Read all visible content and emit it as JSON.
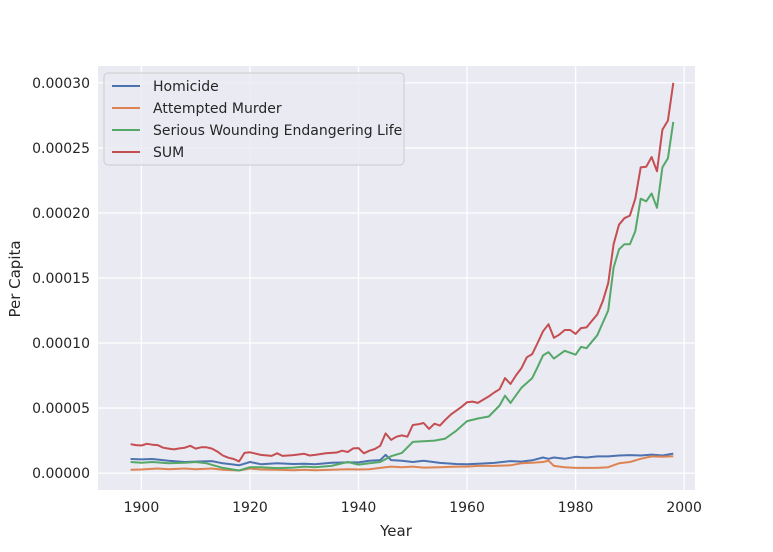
{
  "chart_data": {
    "type": "line",
    "title": "",
    "xlabel": "Year",
    "ylabel": "Per Capita",
    "xlim": [
      1892,
      2002
    ],
    "ylim": [
      -1.3e-05,
      0.000313
    ],
    "xticks": [
      1900,
      1920,
      1940,
      1960,
      1980,
      2000
    ],
    "yticks": [
      0.0,
      5e-05,
      0.0001,
      0.00015,
      0.0002,
      0.00025,
      0.0003
    ],
    "xtick_labels": [
      "1900",
      "1920",
      "1940",
      "1960",
      "1980",
      "2000"
    ],
    "ytick_labels": [
      "0.00000",
      "0.00005",
      "0.00010",
      "0.00015",
      "0.00020",
      "0.00025",
      "0.00030"
    ],
    "grid": true,
    "legend_position": "upper-left",
    "colors": {
      "background": "#eaeaf2",
      "grid": "#ffffff"
    },
    "series": [
      {
        "name": "Homicide",
        "color": "#4c72b0",
        "points": [
          [
            1898,
            1.08e-05
          ],
          [
            1900,
            1.05e-05
          ],
          [
            1902,
            1.08e-05
          ],
          [
            1905,
            9.5e-06
          ],
          [
            1908,
            8.5e-06
          ],
          [
            1910,
            8.8e-06
          ],
          [
            1913,
            9.2e-06
          ],
          [
            1915,
            7.5e-06
          ],
          [
            1918,
            6e-06
          ],
          [
            1920,
            8.5e-06
          ],
          [
            1922,
            6.8e-06
          ],
          [
            1925,
            7.5e-06
          ],
          [
            1928,
            7e-06
          ],
          [
            1930,
            7.2e-06
          ],
          [
            1932,
            6.8e-06
          ],
          [
            1935,
            8e-06
          ],
          [
            1938,
            8.2e-06
          ],
          [
            1940,
            8.2e-06
          ],
          [
            1942,
            9.5e-06
          ],
          [
            1944,
            1e-05
          ],
          [
            1945,
            1.4e-05
          ],
          [
            1946,
            1e-05
          ],
          [
            1948,
            9.5e-06
          ],
          [
            1950,
            8.5e-06
          ],
          [
            1952,
            9.5e-06
          ],
          [
            1955,
            7.8e-06
          ],
          [
            1958,
            7e-06
          ],
          [
            1960,
            6.8e-06
          ],
          [
            1962,
            7.2e-06
          ],
          [
            1965,
            7.8e-06
          ],
          [
            1968,
            9.2e-06
          ],
          [
            1970,
            8.8e-06
          ],
          [
            1972,
            9.8e-06
          ],
          [
            1974,
            1.2e-05
          ],
          [
            1975,
            1.1e-05
          ],
          [
            1976,
            1.2e-05
          ],
          [
            1978,
            1.1e-05
          ],
          [
            1980,
            1.25e-05
          ],
          [
            1982,
            1.2e-05
          ],
          [
            1984,
            1.28e-05
          ],
          [
            1986,
            1.28e-05
          ],
          [
            1988,
            1.35e-05
          ],
          [
            1990,
            1.38e-05
          ],
          [
            1992,
            1.35e-05
          ],
          [
            1994,
            1.42e-05
          ],
          [
            1996,
            1.35e-05
          ],
          [
            1998,
            1.5e-05
          ]
        ]
      },
      {
        "name": "Attempted Murder",
        "color": "#dd8452",
        "points": [
          [
            1898,
            2.5e-06
          ],
          [
            1900,
            2.8e-06
          ],
          [
            1903,
            3.5e-06
          ],
          [
            1905,
            3e-06
          ],
          [
            1908,
            3.5e-06
          ],
          [
            1910,
            3e-06
          ],
          [
            1913,
            3.5e-06
          ],
          [
            1915,
            2.5e-06
          ],
          [
            1918,
            2e-06
          ],
          [
            1920,
            3.5e-06
          ],
          [
            1922,
            2.8e-06
          ],
          [
            1925,
            2.5e-06
          ],
          [
            1928,
            2.2e-06
          ],
          [
            1930,
            2.5e-06
          ],
          [
            1932,
            2.2e-06
          ],
          [
            1935,
            2.5e-06
          ],
          [
            1938,
            3e-06
          ],
          [
            1940,
            2.8e-06
          ],
          [
            1942,
            3e-06
          ],
          [
            1944,
            4e-06
          ],
          [
            1946,
            5e-06
          ],
          [
            1948,
            4.5e-06
          ],
          [
            1950,
            5e-06
          ],
          [
            1952,
            4.2e-06
          ],
          [
            1955,
            4.5e-06
          ],
          [
            1958,
            5e-06
          ],
          [
            1960,
            5e-06
          ],
          [
            1962,
            5.5e-06
          ],
          [
            1965,
            5.5e-06
          ],
          [
            1968,
            6e-06
          ],
          [
            1970,
            7.5e-06
          ],
          [
            1972,
            8e-06
          ],
          [
            1974,
            8.5e-06
          ],
          [
            1975,
            9.5e-06
          ],
          [
            1976,
            5.5e-06
          ],
          [
            1978,
            4.5e-06
          ],
          [
            1980,
            4e-06
          ],
          [
            1982,
            4e-06
          ],
          [
            1984,
            4e-06
          ],
          [
            1986,
            4.5e-06
          ],
          [
            1988,
            7.5e-06
          ],
          [
            1990,
            8.5e-06
          ],
          [
            1992,
            1.1e-05
          ],
          [
            1994,
            1.28e-05
          ],
          [
            1996,
            1.25e-05
          ],
          [
            1998,
            1.3e-05
          ]
        ]
      },
      {
        "name": "Serious Wounding Endangering Life",
        "color": "#55a868",
        "points": [
          [
            1898,
            8.5e-06
          ],
          [
            1900,
            8e-06
          ],
          [
            1902,
            8.5e-06
          ],
          [
            1905,
            7.5e-06
          ],
          [
            1908,
            8e-06
          ],
          [
            1910,
            8.5e-06
          ],
          [
            1912,
            7.5e-06
          ],
          [
            1915,
            4e-06
          ],
          [
            1918,
            2e-06
          ],
          [
            1920,
            4.5e-06
          ],
          [
            1922,
            4.5e-06
          ],
          [
            1925,
            3.8e-06
          ],
          [
            1928,
            4.2e-06
          ],
          [
            1930,
            5e-06
          ],
          [
            1932,
            4.5e-06
          ],
          [
            1935,
            5.5e-06
          ],
          [
            1938,
            8.5e-06
          ],
          [
            1940,
            6.5e-06
          ],
          [
            1942,
            7.5e-06
          ],
          [
            1944,
            8.5e-06
          ],
          [
            1946,
            1.3e-05
          ],
          [
            1948,
            1.55e-05
          ],
          [
            1950,
            2.4e-05
          ],
          [
            1952,
            2.45e-05
          ],
          [
            1954,
            2.5e-05
          ],
          [
            1956,
            2.65e-05
          ],
          [
            1958,
            3.25e-05
          ],
          [
            1960,
            4e-05
          ],
          [
            1962,
            4.2e-05
          ],
          [
            1964,
            4.35e-05
          ],
          [
            1966,
            5.2e-05
          ],
          [
            1967,
            5.95e-05
          ],
          [
            1968,
            5.4e-05
          ],
          [
            1970,
            6.55e-05
          ],
          [
            1972,
            7.3e-05
          ],
          [
            1973,
            8.15e-05
          ],
          [
            1974,
            9.05e-05
          ],
          [
            1975,
            9.3e-05
          ],
          [
            1976,
            8.8e-05
          ],
          [
            1978,
            9.4e-05
          ],
          [
            1980,
            9.1e-05
          ],
          [
            1981,
            9.7e-05
          ],
          [
            1982,
            9.6e-05
          ],
          [
            1984,
            0.000106
          ],
          [
            1986,
            0.000125
          ],
          [
            1987,
            0.000158
          ],
          [
            1988,
            0.000172
          ],
          [
            1989,
            0.000176
          ],
          [
            1990,
            0.000176
          ],
          [
            1991,
            0.000186
          ],
          [
            1992,
            0.000211
          ],
          [
            1993,
            0.000209
          ],
          [
            1994,
            0.000215
          ],
          [
            1995,
            0.000204
          ],
          [
            1996,
            0.000235
          ],
          [
            1997,
            0.000242
          ],
          [
            1998,
            0.00027
          ]
        ]
      },
      {
        "name": "SUM",
        "color": "#c44e52",
        "points": [
          [
            1898,
            2.22e-05
          ],
          [
            1899,
            2.15e-05
          ],
          [
            1900,
            2.12e-05
          ],
          [
            1901,
            2.25e-05
          ],
          [
            1902,
            2.18e-05
          ],
          [
            1903,
            2.15e-05
          ],
          [
            1904,
            1.95e-05
          ],
          [
            1905,
            1.88e-05
          ],
          [
            1906,
            1.82e-05
          ],
          [
            1907,
            1.9e-05
          ],
          [
            1908,
            1.95e-05
          ],
          [
            1909,
            2.1e-05
          ],
          [
            1910,
            1.88e-05
          ],
          [
            1911,
            1.98e-05
          ],
          [
            1912,
            1.98e-05
          ],
          [
            1913,
            1.88e-05
          ],
          [
            1914,
            1.65e-05
          ],
          [
            1915,
            1.35e-05
          ],
          [
            1916,
            1.18e-05
          ],
          [
            1917,
            1.08e-05
          ],
          [
            1918,
            9e-06
          ],
          [
            1919,
            1.55e-05
          ],
          [
            1920,
            1.6e-05
          ],
          [
            1922,
            1.4e-05
          ],
          [
            1924,
            1.32e-05
          ],
          [
            1925,
            1.52e-05
          ],
          [
            1926,
            1.32e-05
          ],
          [
            1928,
            1.38e-05
          ],
          [
            1930,
            1.48e-05
          ],
          [
            1931,
            1.35e-05
          ],
          [
            1932,
            1.4e-05
          ],
          [
            1934,
            1.52e-05
          ],
          [
            1936,
            1.58e-05
          ],
          [
            1937,
            1.72e-05
          ],
          [
            1938,
            1.62e-05
          ],
          [
            1939,
            1.9e-05
          ],
          [
            1940,
            1.92e-05
          ],
          [
            1941,
            1.52e-05
          ],
          [
            1942,
            1.72e-05
          ],
          [
            1943,
            1.85e-05
          ],
          [
            1944,
            2.1e-05
          ],
          [
            1945,
            3.05e-05
          ],
          [
            1946,
            2.55e-05
          ],
          [
            1947,
            2.8e-05
          ],
          [
            1948,
            2.9e-05
          ],
          [
            1949,
            2.8e-05
          ],
          [
            1950,
            3.7e-05
          ],
          [
            1951,
            3.75e-05
          ],
          [
            1952,
            3.85e-05
          ],
          [
            1953,
            3.4e-05
          ],
          [
            1954,
            3.8e-05
          ],
          [
            1955,
            3.65e-05
          ],
          [
            1956,
            4.1e-05
          ],
          [
            1957,
            4.5e-05
          ],
          [
            1958,
            4.8e-05
          ],
          [
            1959,
            5.1e-05
          ],
          [
            1960,
            5.45e-05
          ],
          [
            1961,
            5.5e-05
          ],
          [
            1962,
            5.4e-05
          ],
          [
            1963,
            5.65e-05
          ],
          [
            1964,
            5.9e-05
          ],
          [
            1965,
            6.2e-05
          ],
          [
            1966,
            6.45e-05
          ],
          [
            1967,
            7.3e-05
          ],
          [
            1968,
            6.85e-05
          ],
          [
            1969,
            7.5e-05
          ],
          [
            1970,
            8.05e-05
          ],
          [
            1971,
            8.9e-05
          ],
          [
            1972,
            9.15e-05
          ],
          [
            1973,
            0.0001
          ],
          [
            1974,
            0.000109
          ],
          [
            1975,
            0.0001145
          ],
          [
            1976,
            0.000104
          ],
          [
            1977,
            0.0001065
          ],
          [
            1978,
            0.00011
          ],
          [
            1979,
            0.00011
          ],
          [
            1980,
            0.000107
          ],
          [
            1981,
            0.0001115
          ],
          [
            1982,
            0.000112
          ],
          [
            1983,
            0.000117
          ],
          [
            1984,
            0.000122
          ],
          [
            1985,
            0.000132
          ],
          [
            1986,
            0.000146
          ],
          [
            1987,
            0.000176
          ],
          [
            1988,
            0.000191
          ],
          [
            1989,
            0.000196
          ],
          [
            1990,
            0.000198
          ],
          [
            1991,
            0.000211
          ],
          [
            1992,
            0.000235
          ],
          [
            1993,
            0.0002355
          ],
          [
            1994,
            0.000243
          ],
          [
            1995,
            0.000232
          ],
          [
            1996,
            0.000264
          ],
          [
            1997,
            0.000271
          ],
          [
            1998,
            0.0003
          ]
        ]
      }
    ]
  }
}
